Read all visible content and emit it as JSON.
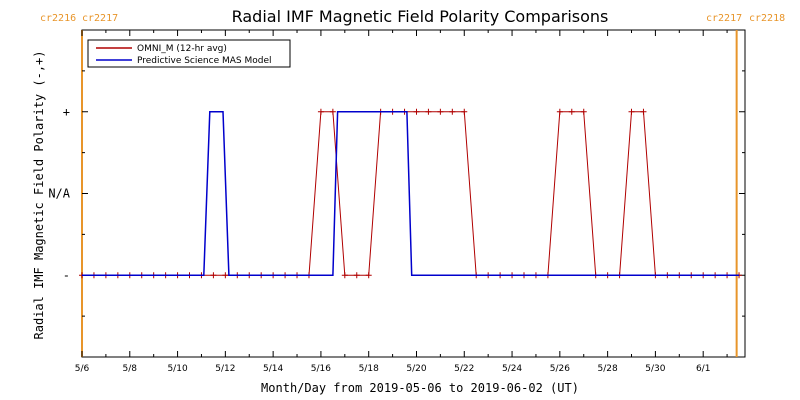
{
  "chart_data": {
    "type": "line",
    "title": "Radial IMF Magnetic Field Polarity Comparisons",
    "xlabel": "Month/Day from 2019-05-06 to 2019-06-02 (UT)",
    "ylabel": "Radial IMF Magnetic Field Polarity (-,+)",
    "xlim_days": [
      0,
      27.75
    ],
    "ylim": [
      -2,
      2
    ],
    "y_levels": {
      "+": 1,
      "N/A": 0,
      "-": -1
    },
    "x_tick_labels": [
      "5/6",
      "5/8",
      "5/10",
      "5/12",
      "5/14",
      "5/16",
      "5/18",
      "5/20",
      "5/22",
      "5/24",
      "5/26",
      "5/28",
      "5/30",
      "6/1"
    ],
    "x_tick_days": [
      0,
      2,
      4,
      6,
      8,
      10,
      12,
      14,
      16,
      18,
      20,
      22,
      24,
      26
    ],
    "y_tick_labels": [
      "+",
      "N/A",
      "-"
    ],
    "y_tick_values": [
      1,
      0,
      -1
    ],
    "carrington_rotations": {
      "left": [
        "cr2216",
        "cr2217"
      ],
      "right": [
        "cr2217",
        "cr2218"
      ],
      "boundary_days": [
        0,
        27.4
      ]
    },
    "legend": {
      "placement": "top-left"
    },
    "series": [
      {
        "name": "OMNI_M (12-hr avg)",
        "color": "#b00000",
        "marker": "+",
        "x_days": [
          0,
          0.5,
          1,
          1.5,
          2,
          2.5,
          3,
          3.5,
          4,
          4.5,
          5,
          5.5,
          6,
          6.5,
          7,
          7.5,
          8,
          8.5,
          9,
          9.5,
          10,
          10.5,
          11,
          11.5,
          12,
          12.5,
          13,
          13.5,
          14,
          14.5,
          15,
          15.5,
          16,
          16.5,
          17,
          17.5,
          18,
          18.5,
          19,
          19.5,
          20,
          20.5,
          21,
          21.5,
          22,
          22.5,
          23,
          23.5,
          24,
          24.5,
          25,
          25.5,
          26,
          26.5,
          27,
          27.5
        ],
        "values": [
          -1,
          -1,
          -1,
          -1,
          -1,
          -1,
          -1,
          -1,
          -1,
          -1,
          -1,
          -1,
          -1,
          -1,
          -1,
          -1,
          -1,
          -1,
          -1,
          -1,
          1,
          1,
          -1,
          -1,
          -1,
          1,
          1,
          1,
          1,
          1,
          1,
          1,
          1,
          -1,
          -1,
          -1,
          -1,
          -1,
          -1,
          -1,
          1,
          1,
          1,
          -1,
          -1,
          -1,
          1,
          1,
          -1,
          -1,
          -1,
          -1,
          -1,
          -1,
          -1,
          -1
        ]
      },
      {
        "name": "Predictive Science MAS Model",
        "color": "#0000cc",
        "marker": "none",
        "segments": [
          {
            "x_days": [
              0,
              5.1
            ],
            "value": -1
          },
          {
            "x_days": [
              5.35,
              5.9
            ],
            "value": 1
          },
          {
            "x_days": [
              6.15,
              10.5
            ],
            "value": -1
          },
          {
            "x_days": [
              10.7,
              13.6
            ],
            "value": 1
          },
          {
            "x_days": [
              13.8,
              27.5
            ],
            "value": -1
          }
        ]
      }
    ]
  }
}
